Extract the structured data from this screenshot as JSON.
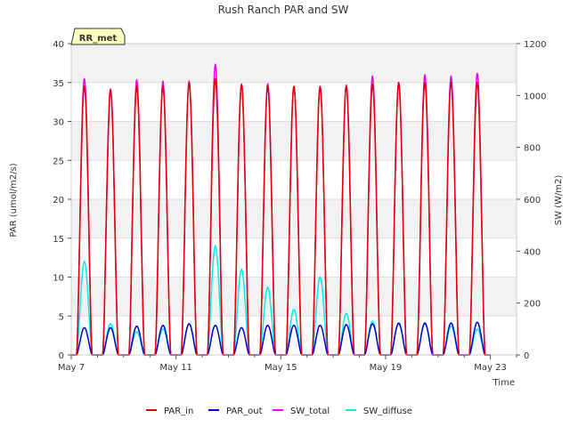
{
  "chart_data": {
    "type": "line",
    "title": "Rush Ranch PAR and SW",
    "xlabel": "Time",
    "ylabel_left": "PAR (umol/m2/s)",
    "ylabel_right": "SW (W/m2)",
    "ylim_left": [
      0,
      40
    ],
    "ylim_right": [
      0,
      1200
    ],
    "xlim": [
      7,
      24
    ],
    "y_ticks_left": [
      0,
      5,
      10,
      15,
      20,
      25,
      30,
      35,
      40
    ],
    "y_ticks_right": [
      0,
      200,
      400,
      600,
      800,
      1000,
      1200
    ],
    "x_ticks": [
      {
        "value": 7,
        "label": "May 7"
      },
      {
        "value": 11,
        "label": "May 11"
      },
      {
        "value": 15,
        "label": "May 15"
      },
      {
        "value": 19,
        "label": "May 19"
      },
      {
        "value": 23,
        "label": "May 23"
      }
    ],
    "annotation": "RR_met",
    "legend_position": "bottom-center",
    "days": [
      7.5,
      8.5,
      9.5,
      10.5,
      11.5,
      12.5,
      13.5,
      14.5,
      15.5,
      16.5,
      17.5,
      18.5,
      19.5,
      20.5,
      21.5,
      22.5
    ],
    "series": [
      {
        "name": "PAR_in",
        "color": "#e00000",
        "axis": "left",
        "daily_peaks": [
          34.5,
          34.0,
          34.5,
          34.5,
          35.0,
          35.5,
          34.8,
          34.5,
          34.5,
          34.5,
          34.5,
          34.8,
          35.0,
          35.0,
          35.0,
          35.0
        ]
      },
      {
        "name": "PAR_out",
        "color": "#0000cc",
        "axis": "left",
        "daily_peaks": [
          3.5,
          3.5,
          3.7,
          3.8,
          4.0,
          3.8,
          3.5,
          3.8,
          3.8,
          3.8,
          3.9,
          4.0,
          4.1,
          4.1,
          4.1,
          4.2
        ]
      },
      {
        "name": "SW_total",
        "color": "#ee00ee",
        "axis": "right",
        "daily_peaks": [
          1065,
          1025,
          1060,
          1055,
          1055,
          1120,
          1040,
          1045,
          1035,
          1035,
          1040,
          1075,
          1050,
          1080,
          1075,
          1085
        ]
      },
      {
        "name": "SW_diffuse",
        "color": "#00eeee",
        "axis": "right",
        "daily_peaks": [
          360,
          120,
          90,
          100,
          120,
          420,
          330,
          260,
          175,
          300,
          160,
          130,
          120,
          120,
          110,
          100
        ]
      }
    ]
  }
}
